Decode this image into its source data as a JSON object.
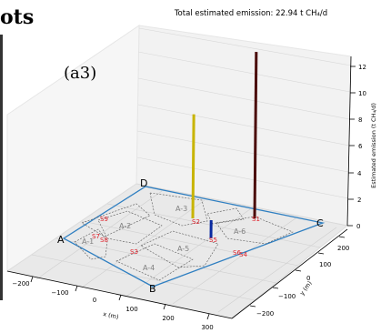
{
  "header_fragment": "ots",
  "chart_data": {
    "type": "3d-bar",
    "title": "Total estimated emission: 22.94 t CH₄/d",
    "panel_label": "(a3)",
    "xlabel": "x (m)",
    "ylabel": "y (m)",
    "zlabel": "Estimated emission (t CH₄/d)",
    "x_ticks": [
      "−200",
      "−100",
      "0",
      "100",
      "200",
      "300"
    ],
    "y_ticks": [
      "−200",
      "−100",
      "0",
      "100",
      "200"
    ],
    "z_ticks": [
      "0",
      "2",
      "4",
      "6",
      "8",
      "10",
      "12"
    ],
    "zlim": [
      0,
      12
    ],
    "boundary_corners": [
      "A",
      "B",
      "C",
      "D"
    ],
    "areas": [
      "A-1",
      "A-2",
      "A-3",
      "A-4",
      "A-5",
      "A-6"
    ],
    "sources": [
      "S1",
      "S2",
      "S3",
      "S4",
      "S5",
      "S6",
      "S7",
      "S8",
      "S9"
    ],
    "bars": [
      {
        "source": "S1",
        "value": 12.8,
        "color": "#4a0a08"
      },
      {
        "source": "S2",
        "value": 8.0,
        "color": "#c8b400"
      },
      {
        "source": "S5",
        "value": 1.4,
        "color": "#0a2aa0"
      }
    ]
  }
}
